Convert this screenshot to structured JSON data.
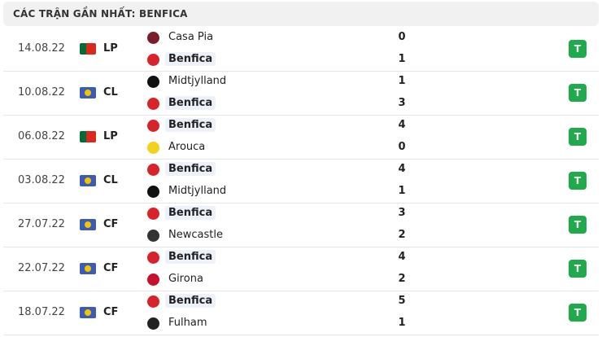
{
  "header": {
    "title": "CÁC TRẬN GẦN NHẤT: BENFICA"
  },
  "matches": [
    {
      "date": "14.08.22",
      "competition": "LP",
      "home": "Casa Pia",
      "home_score": "0",
      "away": "Benfica",
      "away_score": "1",
      "result": "T"
    },
    {
      "date": "10.08.22",
      "competition": "CL",
      "home": "Midtjylland",
      "home_score": "1",
      "away": "Benfica",
      "away_score": "3",
      "result": "T"
    },
    {
      "date": "06.08.22",
      "competition": "LP",
      "home": "Benfica",
      "home_score": "4",
      "away": "Arouca",
      "away_score": "0",
      "result": "T"
    },
    {
      "date": "03.08.22",
      "competition": "CL",
      "home": "Benfica",
      "home_score": "4",
      "away": "Midtjylland",
      "away_score": "1",
      "result": "T"
    },
    {
      "date": "27.07.22",
      "competition": "CF",
      "home": "Benfica",
      "home_score": "3",
      "away": "Newcastle",
      "away_score": "2",
      "result": "T"
    },
    {
      "date": "22.07.22",
      "competition": "CF",
      "home": "Benfica",
      "home_score": "4",
      "away": "Girona",
      "away_score": "2",
      "result": "T"
    },
    {
      "date": "18.07.22",
      "competition": "CF",
      "home": "Benfica",
      "home_score": "5",
      "away": "Fulham",
      "away_score": "1",
      "result": "T"
    }
  ]
}
